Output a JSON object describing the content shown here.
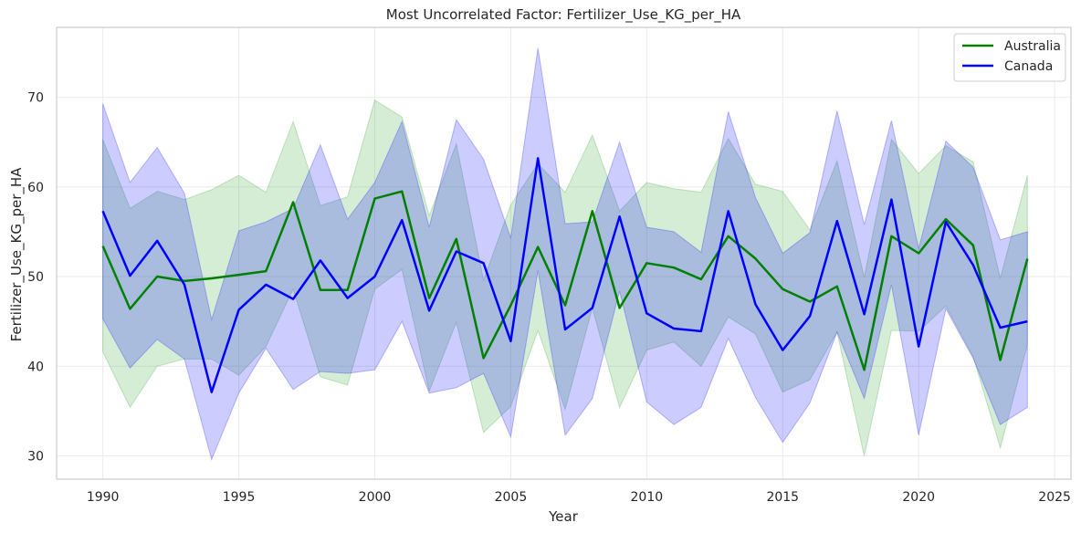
{
  "chart_data": {
    "type": "line",
    "title": "Most Uncorrelated Factor: Fertilizer_Use_KG_per_HA",
    "xlabel": "Year",
    "ylabel": "Fertilizer_Use_KG_per_HA",
    "xlim": [
      1988.3,
      2025.6
    ],
    "ylim": [
      27.4,
      77.8
    ],
    "xticks": [
      1990,
      1995,
      2000,
      2005,
      2010,
      2015,
      2020,
      2025
    ],
    "yticks": [
      30,
      40,
      50,
      60,
      70
    ],
    "grid": true,
    "legend_position": "top-right",
    "x": [
      1990,
      1991,
      1992,
      1993,
      1994,
      1995,
      1996,
      1997,
      1998,
      1999,
      2000,
      2001,
      2002,
      2003,
      2004,
      2005,
      2006,
      2007,
      2008,
      2009,
      2010,
      2011,
      2012,
      2013,
      2014,
      2015,
      2016,
      2017,
      2018,
      2019,
      2020,
      2021,
      2022,
      2023,
      2024
    ],
    "series": [
      {
        "name": "Australia",
        "color": "#008000",
        "band_color": "#2ca02c",
        "values": [
          53.4,
          46.4,
          50.0,
          49.5,
          49.8,
          50.2,
          50.6,
          58.3,
          48.5,
          48.5,
          58.7,
          59.5,
          47.6,
          54.2,
          40.9,
          46.8,
          53.3,
          46.8,
          57.3,
          46.5,
          51.5,
          51.0,
          49.7,
          54.5,
          52.0,
          48.6,
          47.2,
          48.9,
          39.6,
          54.5,
          52.6,
          56.4,
          53.5,
          40.7,
          52.0
        ],
        "lower": [
          41.6,
          35.4,
          40.0,
          40.8,
          40.8,
          39.0,
          42.2,
          48.6,
          38.8,
          37.9,
          48.6,
          50.8,
          37.2,
          44.9,
          32.6,
          35.5,
          44.0,
          35.2,
          46.5,
          35.4,
          41.8,
          42.7,
          40.0,
          45.5,
          43.6,
          37.1,
          38.5,
          43.8,
          30.0,
          44.0,
          43.9,
          46.7,
          41.1,
          30.9,
          42.4
        ],
        "upper": [
          65.3,
          57.6,
          59.5,
          58.6,
          59.7,
          61.3,
          59.4,
          67.3,
          57.9,
          58.9,
          69.7,
          67.8,
          56.8,
          64.8,
          49.6,
          58.0,
          62.6,
          59.4,
          65.8,
          57.3,
          60.5,
          59.8,
          59.4,
          65.4,
          60.3,
          59.5,
          55.2,
          62.9,
          49.9,
          65.3,
          61.5,
          64.6,
          62.8,
          49.8,
          61.3
        ]
      },
      {
        "name": "Canada",
        "color": "#0000ff",
        "band_color": "#0000ff",
        "values": [
          57.3,
          50.1,
          54.0,
          49.1,
          37.1,
          46.3,
          49.1,
          47.5,
          51.8,
          47.6,
          50.0,
          56.3,
          46.2,
          52.8,
          51.5,
          42.8,
          63.2,
          44.1,
          46.5,
          56.7,
          45.9,
          44.2,
          43.9,
          57.3,
          46.9,
          41.8,
          45.6,
          56.2,
          45.8,
          58.6,
          42.2,
          56.1,
          51.3,
          44.3,
          45.0
        ],
        "lower": [
          45.3,
          39.8,
          43.0,
          40.8,
          29.6,
          37.0,
          42.0,
          37.4,
          39.4,
          39.2,
          39.6,
          45.0,
          37.0,
          37.6,
          39.2,
          32.1,
          50.7,
          32.3,
          36.4,
          48.4,
          36.0,
          33.5,
          35.4,
          43.1,
          36.5,
          31.5,
          35.9,
          43.8,
          36.4,
          49.1,
          32.3,
          46.4,
          40.9,
          33.5,
          35.4
        ],
        "upper": [
          69.3,
          60.5,
          64.4,
          59.3,
          45.2,
          55.1,
          56.1,
          57.6,
          64.7,
          56.4,
          60.5,
          67.3,
          55.5,
          67.5,
          63.1,
          54.3,
          75.5,
          55.9,
          56.1,
          65.0,
          55.5,
          55.0,
          52.7,
          68.4,
          58.8,
          52.6,
          54.9,
          68.5,
          55.8,
          67.4,
          53.1,
          65.1,
          62.2,
          54.1,
          55.0
        ]
      }
    ]
  }
}
